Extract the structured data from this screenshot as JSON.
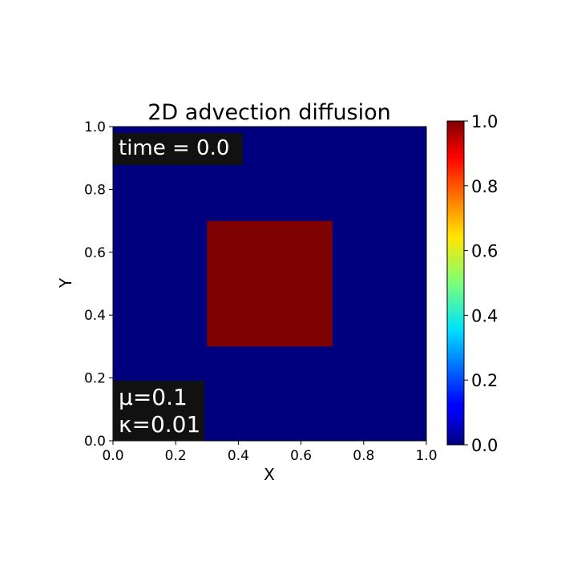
{
  "chart_data": {
    "type": "heatmap",
    "title": "2D advection diffusion",
    "xlabel": "X",
    "ylabel": "Y",
    "xlim": [
      0.0,
      1.0
    ],
    "ylim": [
      0.0,
      1.0
    ],
    "x_ticks": [
      "0.0",
      "0.2",
      "0.4",
      "0.6",
      "0.8",
      "1.0"
    ],
    "y_ticks": [
      "0.0",
      "0.2",
      "0.4",
      "0.6",
      "0.8",
      "1.0"
    ],
    "colormap": "jet",
    "colorbar": {
      "min": 0.0,
      "max": 1.0,
      "ticks": [
        "0.0",
        "0.2",
        "0.4",
        "0.6",
        "0.8",
        "1.0"
      ]
    },
    "background_value": 0.0,
    "regions": [
      {
        "x": [
          0.3,
          0.7
        ],
        "y": [
          0.3,
          0.7
        ],
        "value": 1.0
      }
    ],
    "grid": false,
    "annotations": {
      "time": "time = 0.0",
      "params": [
        "μ=0.1",
        "κ=0.01"
      ]
    }
  },
  "colors": {
    "low": "#00007f",
    "high": "#7f0000",
    "label_box": "#111111",
    "label_text": "#ffffff"
  }
}
